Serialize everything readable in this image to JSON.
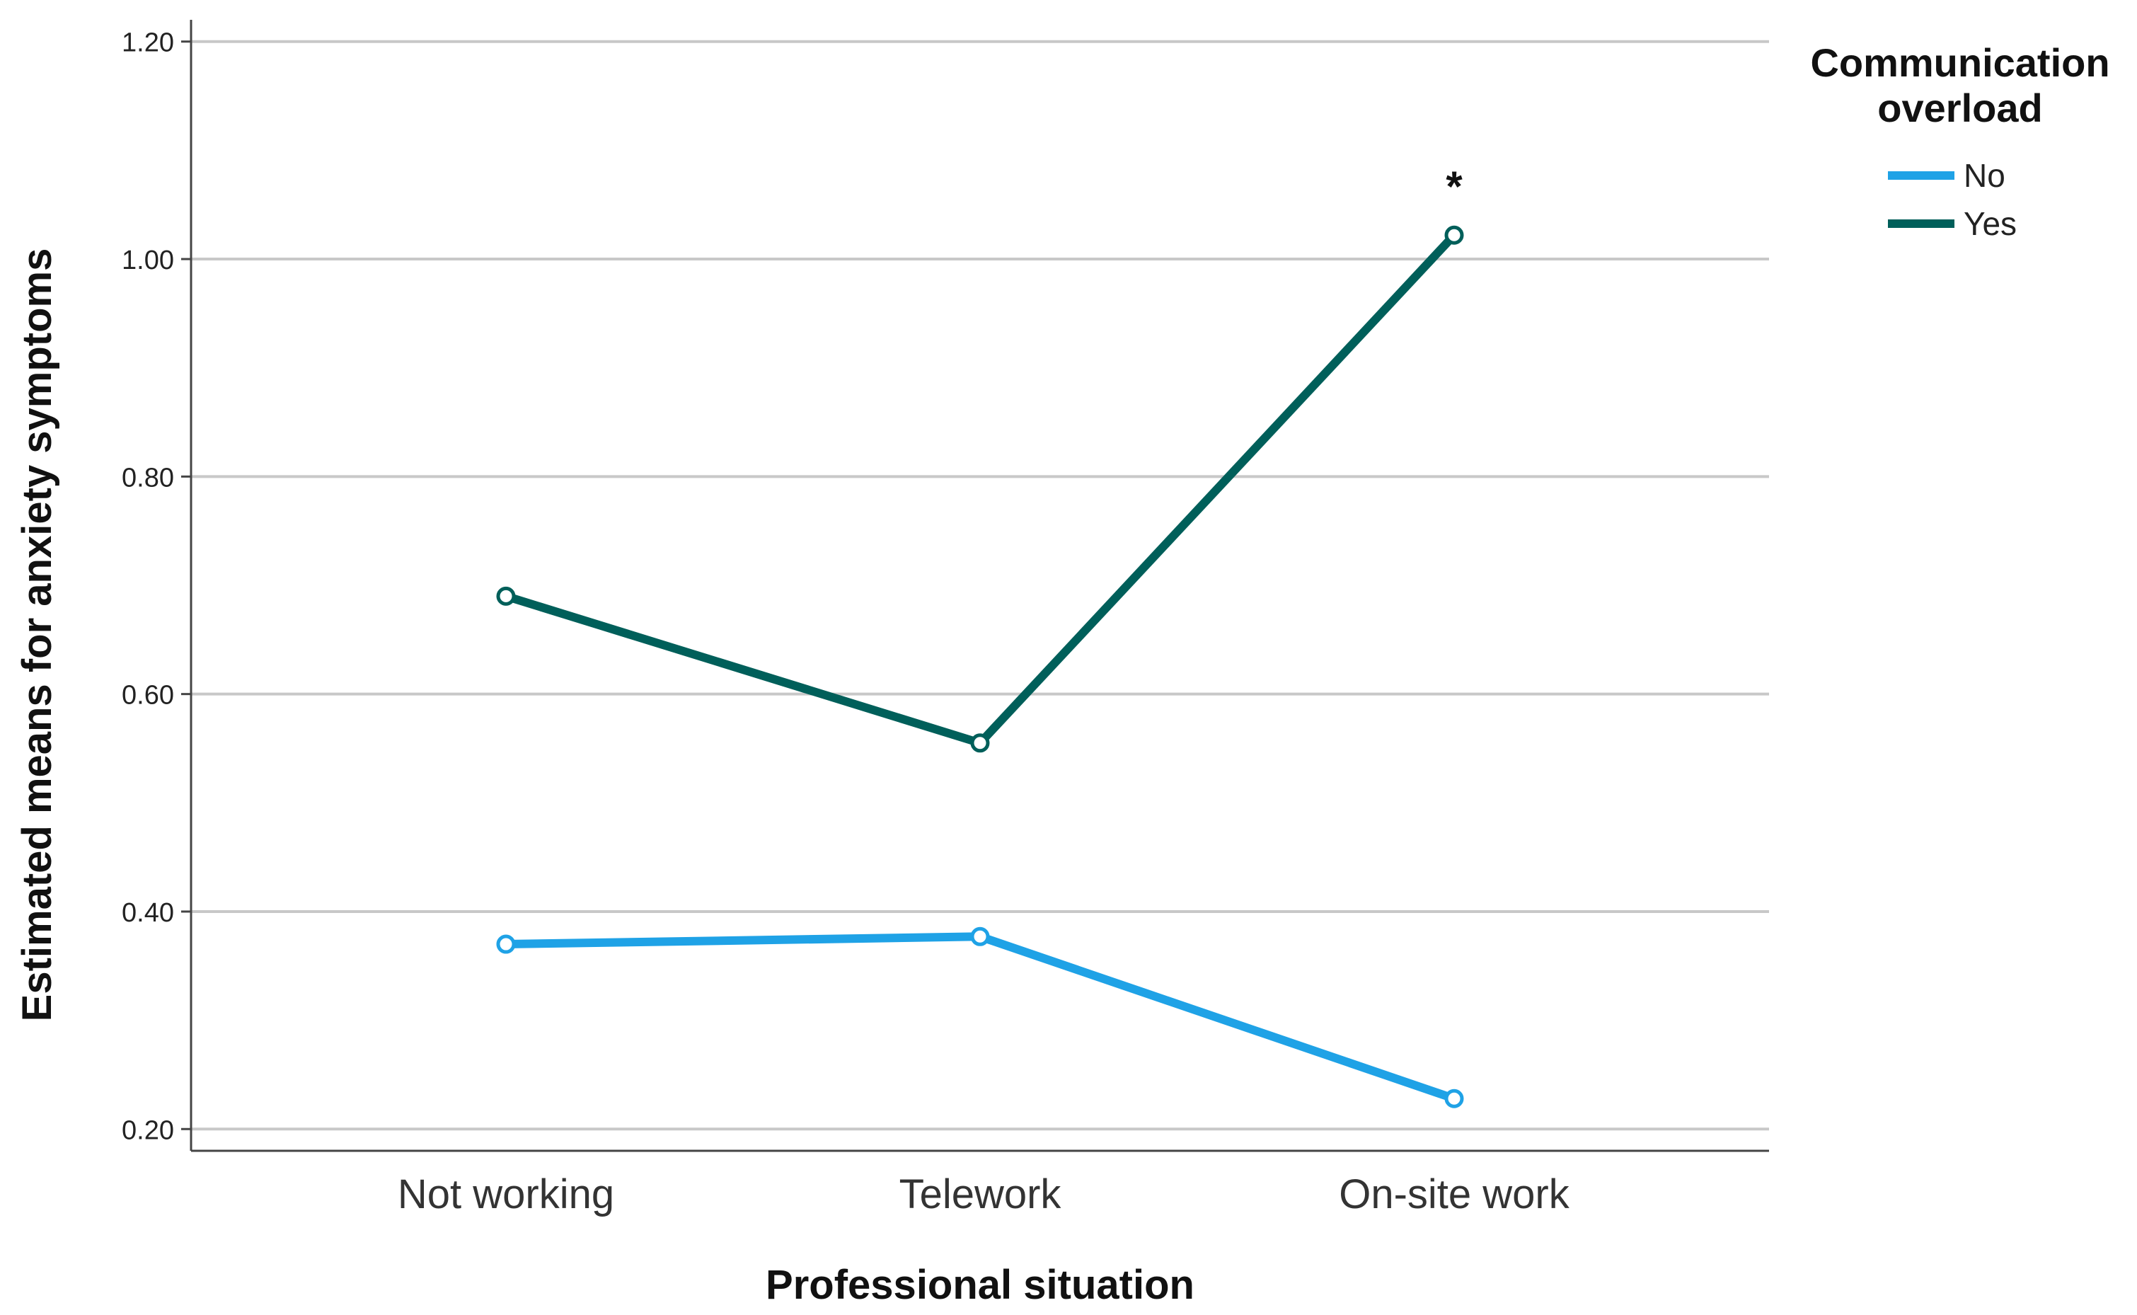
{
  "chart_data": {
    "type": "line",
    "categories": [
      "Not working",
      "Telework",
      "On-site work"
    ],
    "series": [
      {
        "name": "No",
        "values": [
          0.37,
          0.377,
          0.228
        ],
        "color": "#1fa2e6"
      },
      {
        "name": "Yes",
        "values": [
          0.69,
          0.555,
          1.022
        ],
        "color": "#005f5a"
      }
    ],
    "xlabel": "Professional situation",
    "ylabel": "Estimated means for anxiety symptoms",
    "ylim": [
      0.18,
      1.22
    ],
    "yticks": [
      "0.20",
      "0.40",
      "0.60",
      "0.80",
      "1.00",
      "1.20"
    ],
    "grid": true,
    "legend": {
      "title_line1": "Communication",
      "title_line2": "overload",
      "position": "top-right"
    },
    "annotations": [
      {
        "text": "*",
        "series": "Yes",
        "category": "On-site work"
      }
    ]
  }
}
